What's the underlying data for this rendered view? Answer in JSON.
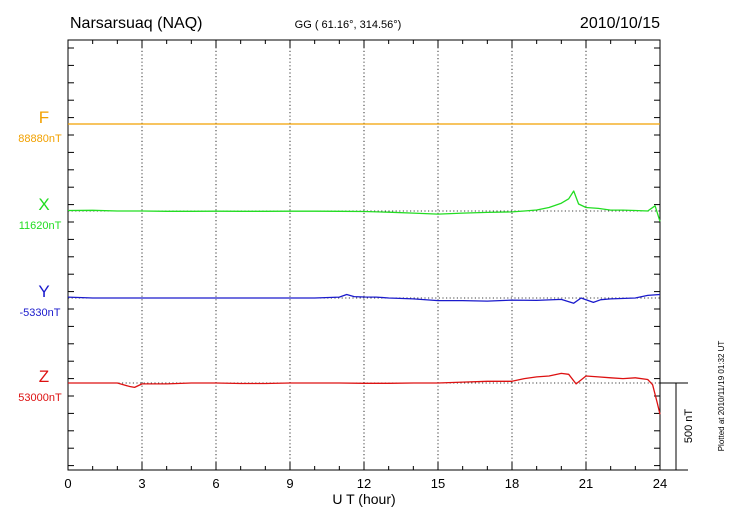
{
  "header": {
    "station": "Narsarsuaq (NAQ)",
    "coords": "GG ( 61.16°, 314.56°)",
    "date": "2010/10/15"
  },
  "footer_note": "Plotted at 2010/11/19 01:32 UT",
  "chart_data": {
    "type": "line",
    "xlabel": "U T (hour)",
    "xlim": [
      0,
      24
    ],
    "xticks": [
      0,
      3,
      6,
      9,
      12,
      15,
      18,
      21,
      24
    ],
    "scale_bar_label": "500 nT",
    "scale_bar_nT": 500,
    "series": [
      {
        "name": "F",
        "baseline_label": "88880nT",
        "color": "#f2a100",
        "x": [
          0,
          3,
          6,
          9,
          12,
          15,
          18,
          21,
          24
        ],
        "y": [
          0,
          0,
          0,
          0,
          0,
          0,
          0,
          0,
          0
        ]
      },
      {
        "name": "X",
        "baseline_label": "11620nT",
        "color": "#22dd22",
        "x": [
          0,
          1,
          2,
          3,
          4,
          5,
          6,
          7,
          8,
          9,
          10,
          11,
          12,
          13,
          14,
          15,
          16,
          17,
          18,
          18.5,
          19,
          19.5,
          20,
          20.3,
          20.5,
          20.7,
          21,
          21.5,
          22,
          22.5,
          23,
          23.5,
          23.8,
          24
        ],
        "y": [
          3,
          4,
          0,
          0,
          -2,
          -2,
          -1,
          -2,
          -2,
          -1,
          -1,
          -2,
          -3,
          -7,
          -12,
          -18,
          -12,
          -8,
          -5,
          0,
          6,
          20,
          45,
          70,
          115,
          40,
          20,
          15,
          5,
          5,
          3,
          0,
          30,
          -60
        ]
      },
      {
        "name": "Y",
        "baseline_label": "-5330nT",
        "color": "#1a1acc",
        "x": [
          0,
          1,
          2,
          3,
          4,
          5,
          6,
          7,
          8,
          9,
          10,
          11,
          11.3,
          11.6,
          12,
          12.5,
          13,
          14,
          15,
          16,
          17,
          18,
          19,
          20,
          20.5,
          20.8,
          21,
          21.3,
          21.6,
          22,
          23,
          23.5,
          24
        ],
        "y": [
          5,
          0,
          0,
          0,
          0,
          0,
          0,
          0,
          0,
          0,
          0,
          5,
          20,
          8,
          6,
          5,
          0,
          -5,
          -15,
          -15,
          -18,
          -12,
          -14,
          -8,
          -30,
          0,
          -10,
          -25,
          -10,
          -5,
          0,
          15,
          20
        ]
      },
      {
        "name": "Z",
        "baseline_label": "53000nT",
        "color": "#dd1111",
        "x": [
          0,
          1,
          2,
          2.5,
          2.7,
          3,
          4,
          5,
          6,
          7,
          8,
          9,
          10,
          11,
          12,
          13,
          14,
          15,
          16,
          17,
          18,
          18.5,
          19,
          19.5,
          20,
          20.3,
          20.6,
          21,
          21.5,
          22,
          22.5,
          23,
          23.5,
          23.7,
          23.9,
          24
        ],
        "y": [
          0,
          0,
          0,
          -20,
          -25,
          -5,
          -5,
          0,
          0,
          -3,
          -3,
          0,
          0,
          0,
          -2,
          -2,
          0,
          0,
          5,
          10,
          10,
          25,
          35,
          40,
          55,
          50,
          -5,
          40,
          35,
          30,
          25,
          30,
          20,
          -10,
          -120,
          -180
        ]
      }
    ]
  }
}
